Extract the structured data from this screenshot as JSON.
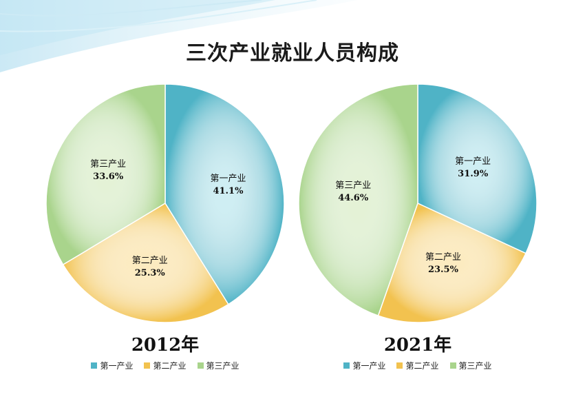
{
  "title": "三次产业就业人员构成",
  "colors": {
    "primary": "#4fb3c6",
    "secondary": "#f2c24f",
    "tertiary": "#a9d48c"
  },
  "legend": [
    "第一产业",
    "第二产业",
    "第三产业"
  ],
  "chart_data": [
    {
      "type": "pie",
      "title": "2012年",
      "categories": [
        "第一产业",
        "第二产业",
        "第三产业"
      ],
      "values": [
        41.1,
        25.3,
        33.6
      ],
      "labels": [
        "41.1%",
        "25.3%",
        "33.6%"
      ]
    },
    {
      "type": "pie",
      "title": "2021年",
      "categories": [
        "第一产业",
        "第二产业",
        "第三产业"
      ],
      "values": [
        31.9,
        23.5,
        44.6
      ],
      "labels": [
        "31.9%",
        "23.5%",
        "44.6%"
      ]
    }
  ]
}
